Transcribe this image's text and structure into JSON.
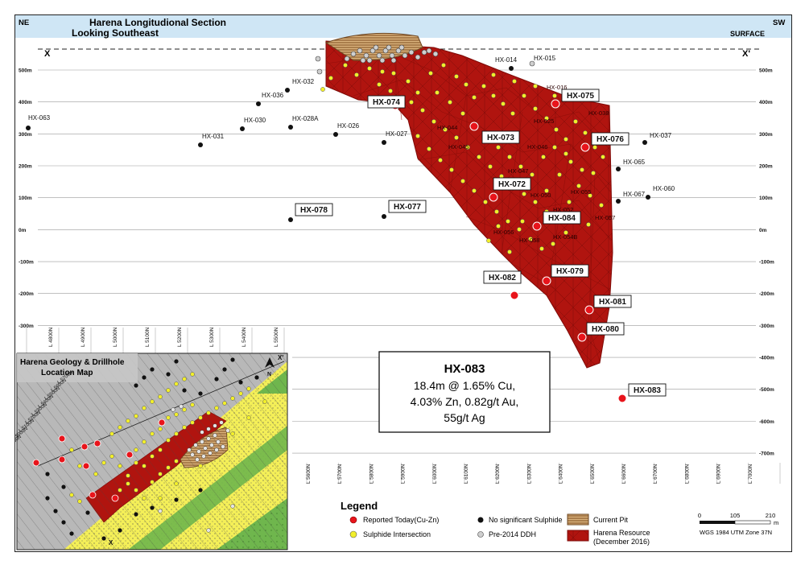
{
  "header": {
    "corner_left": "NE",
    "corner_right": "SW",
    "title_line1": "Harena Longitudional Section",
    "title_line2": "Looking Southeast",
    "surface": "SURFACE",
    "marker_left": "X",
    "marker_right": "X'"
  },
  "elevations_left": [
    {
      "label": "500m",
      "value": 500
    },
    {
      "label": "400m",
      "value": 400
    },
    {
      "label": "300m",
      "value": 300
    },
    {
      "label": "200m",
      "value": 200
    },
    {
      "label": "100m",
      "value": 100
    },
    {
      "label": "0m",
      "value": 0
    },
    {
      "label": "-100m",
      "value": -100
    },
    {
      "label": "-200m",
      "value": -200
    },
    {
      "label": "-300m",
      "value": -300
    }
  ],
  "elevations_right": [
    {
      "label": "500m",
      "value": 500
    },
    {
      "label": "400m",
      "value": 400
    },
    {
      "label": "300m",
      "value": 300
    },
    {
      "label": "200m",
      "value": 200
    },
    {
      "label": "100m",
      "value": 100
    },
    {
      "label": "0m",
      "value": 0
    },
    {
      "label": "-100m",
      "value": -100
    },
    {
      "label": "-200m",
      "value": -200
    },
    {
      "label": "-300m",
      "value": -300
    },
    {
      "label": "-400m",
      "value": -400
    },
    {
      "label": "-500m",
      "value": -500
    },
    {
      "label": "-600m",
      "value": -600
    },
    {
      "label": "-700m",
      "value": -700
    }
  ],
  "section_lines_top": [
    "L 4800N",
    "L 4900N",
    "L 5000N",
    "L 5100N",
    "L 5200N",
    "L 5300N",
    "L 5400N",
    "L 5500N"
  ],
  "section_lines_bottom": [
    "L 5600N",
    "L 5700N",
    "L 5800N",
    "L 5900N",
    "L 6000N",
    "L 6100N",
    "L 6200N",
    "L 6300N",
    "L 6400N",
    "L 6500N",
    "L 6600N",
    "L 6700N",
    "L 6800N",
    "L 6900N",
    "L 7000N"
  ],
  "holes_reported": [
    {
      "label": "HX-074",
      "kind": "reported"
    },
    {
      "label": "HX-075",
      "kind": "reported"
    },
    {
      "label": "HX-073",
      "kind": "reported"
    },
    {
      "label": "HX-076",
      "kind": "reported"
    },
    {
      "label": "HX-072",
      "kind": "reported"
    },
    {
      "label": "HX-084",
      "kind": "reported"
    },
    {
      "label": "HX-079",
      "kind": "reported"
    },
    {
      "label": "HX-082",
      "kind": "reported"
    },
    {
      "label": "HX-081",
      "kind": "reported"
    },
    {
      "label": "HX-080",
      "kind": "reported"
    },
    {
      "label": "HX-083",
      "kind": "reported"
    }
  ],
  "holes_no_sulphide": [
    {
      "label": "HX-078"
    },
    {
      "label": "HX-077"
    },
    {
      "label": "HX-063"
    },
    {
      "label": "HX-031"
    },
    {
      "label": "HX-030"
    },
    {
      "label": "HX-036"
    },
    {
      "label": "HX-032"
    },
    {
      "label": "HX-028A"
    },
    {
      "label": "HX-026"
    },
    {
      "label": "HX-027"
    },
    {
      "label": "HX-037"
    },
    {
      "label": "HX-065"
    },
    {
      "label": "HX-067"
    },
    {
      "label": "HX-060"
    },
    {
      "label": "HX-014"
    },
    {
      "label": "HX-015"
    }
  ],
  "holes_sulphide": [
    {
      "label": "HX-016"
    },
    {
      "label": "HX-025"
    },
    {
      "label": "HX-038"
    },
    {
      "label": "HX-044"
    },
    {
      "label": "HX-045"
    },
    {
      "label": "HX-046"
    },
    {
      "label": "HX-047"
    },
    {
      "label": "HX-050"
    },
    {
      "label": "HX-052"
    },
    {
      "label": "HX-056"
    },
    {
      "label": "HX-057"
    },
    {
      "label": "HX-058"
    },
    {
      "label": "HX-054B"
    },
    {
      "label": "HX-055"
    }
  ],
  "callout": {
    "hole": "HX-083",
    "line1": "18.4m @ 1.65% Cu,",
    "line2": "4.03% Zn, 0.82g/t Au,",
    "line3": "55g/t Ag"
  },
  "inset": {
    "title_line1": "Harena Geology & Drillhole",
    "title_line2": "Location Map",
    "north_arrow": "N",
    "marker_left": "X",
    "marker_right": "X'",
    "inset_lines": [
      "L 5700N",
      "L 5600N",
      "L 5500N",
      "L 5400N",
      "L 5300N",
      "L 5200N",
      "L 5100N",
      "L 5000N",
      "L 4900N",
      "L 4800N",
      "L 5800N",
      "L 5900N",
      "L 6000N",
      "L 6100N",
      "L 6200N",
      "L 6300N",
      "L 6400N",
      "L 6500N",
      "L 6600N",
      "L 6700N",
      "L 6800N"
    ]
  },
  "legend": {
    "title": "Legend",
    "reported": "Reported Today(Cu-Zn)",
    "sulphide": "Sulphide Intersection",
    "no_sulphide": "No significant Sulphide",
    "pre2014": "Pre-2014 DDH",
    "current_pit": "Current Pit",
    "resource_line1": "Harena Resource",
    "resource_line2": "(December 2016)"
  },
  "scale": {
    "ticks": [
      "0",
      "105",
      "210"
    ],
    "unit": "m",
    "projection": "WGS 1984 UTM Zone 37N"
  },
  "colors": {
    "reported": "#e8141b",
    "sulphide": "#f2ef2a",
    "no_sulphide": "#111111",
    "pre2014": "#cfcfcf",
    "resource": "#b0140f",
    "pit": "#d9b27c",
    "header_bg": "#cfe6f5"
  }
}
